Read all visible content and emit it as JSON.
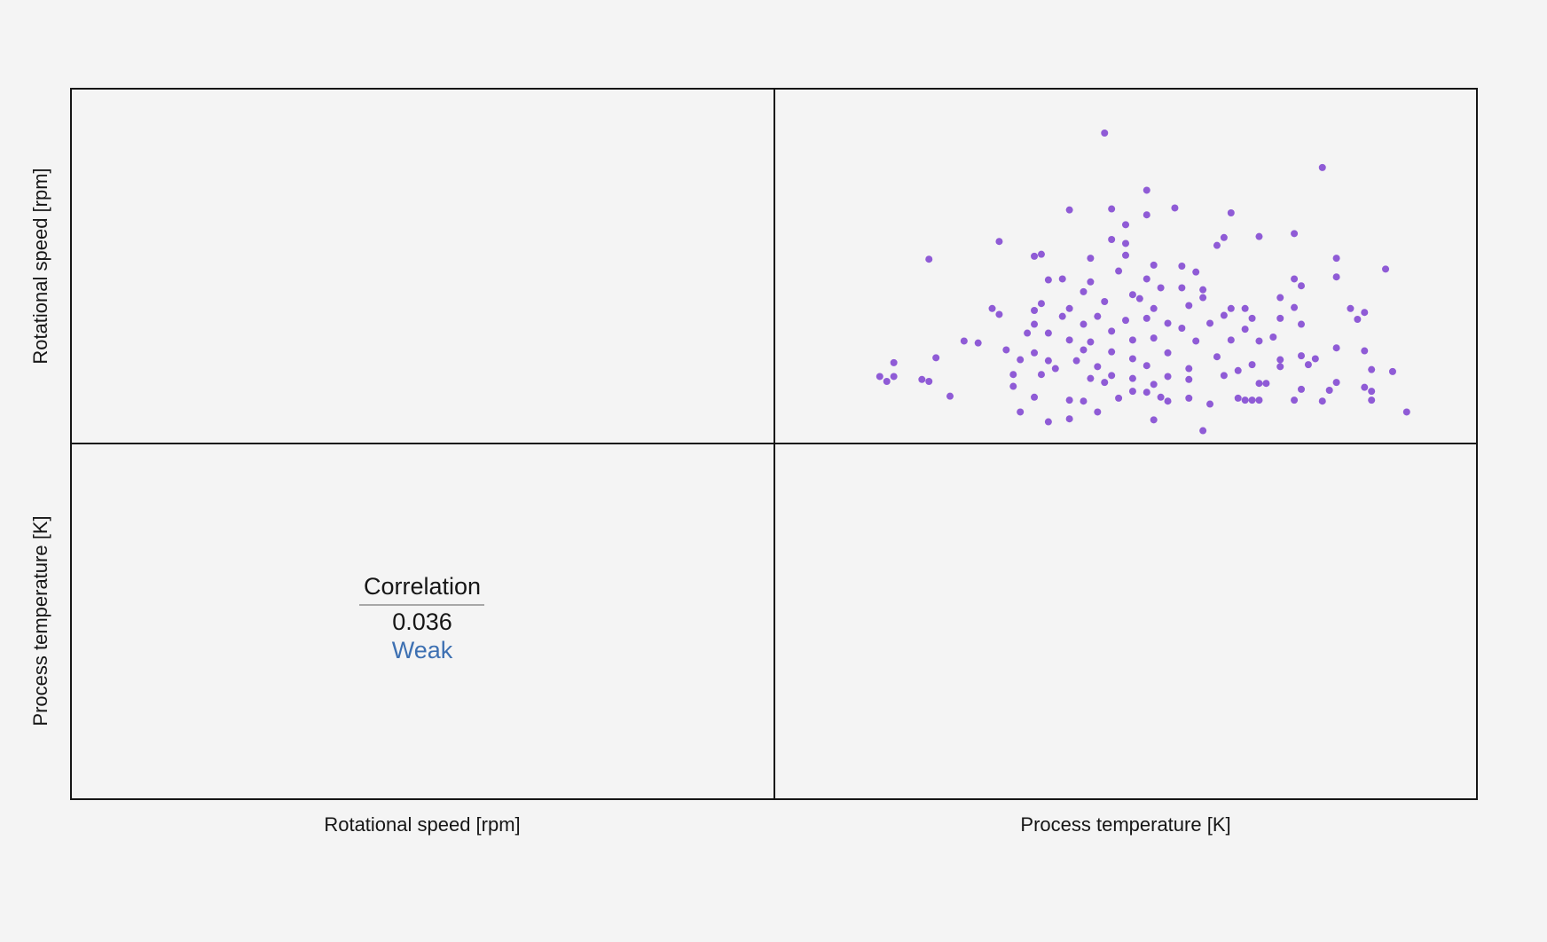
{
  "chart_data": {
    "type": "scatter",
    "variables": [
      "Rotational speed [rpm]",
      "Process temperature [K]"
    ],
    "color": "#7c3fd0",
    "xlim": [
      305,
      315
    ],
    "ylim": [
      1100,
      2900
    ],
    "x": [
      309.7,
      312.8,
      310.3,
      309.2,
      309.8,
      310.7,
      311.5,
      310.3,
      310.0,
      312.4,
      311.9,
      311.4,
      308.2,
      309.8,
      310.0,
      311.3,
      307.2,
      308.7,
      308.8,
      309.5,
      310.0,
      313.0,
      310.4,
      310.8,
      313.7,
      309.9,
      311.0,
      308.9,
      309.1,
      309.5,
      312.4,
      313.0,
      310.3,
      312.5,
      310.8,
      311.1,
      309.4,
      310.1,
      310.2,
      310.5,
      311.1,
      312.2,
      308.8,
      309.7,
      310.9,
      311.5,
      311.7,
      313.2,
      308.1,
      309.2,
      308.7,
      310.4,
      313.4,
      312.4,
      308.2,
      309.1,
      309.6,
      310.0,
      310.3,
      311.4,
      311.8,
      312.2,
      313.3,
      308.7,
      309.4,
      310.6,
      311.2,
      312.5,
      310.8,
      308.6,
      308.9,
      309.8,
      311.7,
      307.7,
      307.9,
      309.2,
      309.5,
      310.1,
      310.4,
      311.0,
      311.5,
      311.9,
      312.1,
      308.3,
      308.7,
      309.4,
      309.8,
      310.6,
      313.0,
      313.4,
      306.7,
      307.3,
      308.5,
      308.9,
      309.3,
      310.1,
      310.9,
      311.3,
      311.8,
      312.2,
      312.5,
      312.7,
      309.0,
      309.6,
      310.3,
      312.6,
      308.8,
      309.8,
      310.6,
      311.6,
      313.8,
      313.5,
      306.5,
      306.7,
      307.1,
      308.4,
      309.5,
      310.1,
      311.4,
      312.2,
      306.6,
      307.2,
      308.4,
      309.7,
      310.4,
      310.9,
      311.9,
      312.0,
      313.0,
      313.4,
      310.1,
      310.3,
      312.5,
      312.9,
      313.5,
      307.5,
      308.7,
      309.9,
      310.5,
      310.9,
      311.6,
      311.7,
      311.8,
      311.9,
      312.4,
      312.8,
      313.5,
      309.2,
      309.4,
      310.6,
      311.2,
      308.5,
      309.6,
      314.0,
      309.2,
      308.9,
      310.4,
      311.1
    ],
    "y": [
      2675,
      2500,
      2385,
      2285,
      2290,
      2295,
      2270,
      2260,
      2210,
      2165,
      2150,
      2145,
      2125,
      2135,
      2115,
      2105,
      2035,
      2050,
      2060,
      2040,
      2055,
      2040,
      2005,
      2000,
      1985,
      1975,
      1970,
      1930,
      1935,
      1920,
      1935,
      1945,
      1935,
      1900,
      1890,
      1880,
      1870,
      1855,
      1835,
      1890,
      1840,
      1840,
      1810,
      1820,
      1800,
      1785,
      1785,
      1785,
      1785,
      1785,
      1775,
      1785,
      1765,
      1790,
      1755,
      1745,
      1745,
      1725,
      1735,
      1750,
      1735,
      1735,
      1730,
      1705,
      1705,
      1710,
      1710,
      1705,
      1685,
      1660,
      1660,
      1670,
      1680,
      1620,
      1610,
      1625,
      1615,
      1625,
      1635,
      1620,
      1625,
      1620,
      1640,
      1575,
      1560,
      1575,
      1565,
      1560,
      1585,
      1570,
      1510,
      1535,
      1525,
      1520,
      1520,
      1530,
      1480,
      1540,
      1500,
      1525,
      1545,
      1530,
      1480,
      1490,
      1495,
      1500,
      1450,
      1445,
      1440,
      1470,
      1465,
      1475,
      1440,
      1440,
      1425,
      1450,
      1430,
      1430,
      1445,
      1490,
      1415,
      1415,
      1390,
      1410,
      1400,
      1425,
      1405,
      1405,
      1410,
      1385,
      1365,
      1360,
      1375,
      1370,
      1365,
      1340,
      1335,
      1330,
      1335,
      1330,
      1330,
      1320,
      1320,
      1320,
      1320,
      1315,
      1320,
      1320,
      1315,
      1315,
      1300,
      1260,
      1260,
      1260,
      1225,
      1210,
      1220,
      1165
    ],
    "correlation": {
      "label": "Correlation",
      "value": 0.036,
      "strength": "Weak"
    }
  }
}
